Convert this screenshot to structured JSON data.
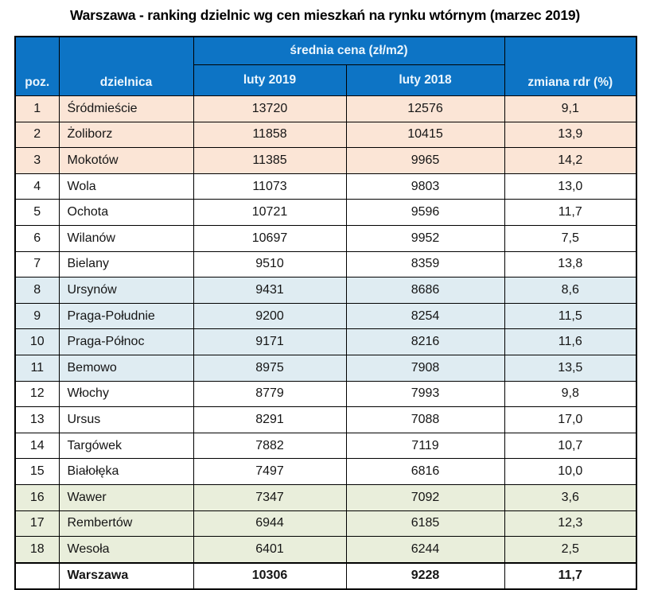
{
  "title": "Warszawa - ranking dzielnic wg cen mieszkań na rynku wtórnym (marzec 2019)",
  "colors": {
    "header_bg": "#0d74c5",
    "header_text": "#ecf6fd",
    "border": "#000000",
    "text": "#151515",
    "row_tints": {
      "peach": "#fbe5d6",
      "white": "#ffffff",
      "blue": "#dfecf2",
      "green": "#e9eedb"
    }
  },
  "table": {
    "headers": {
      "poz": "poz.",
      "district": "dzielnica",
      "price_group": "średnia cena (zł/m2)",
      "feb2019": "luty 2019",
      "feb2018": "luty 2018",
      "change": "zmiana rdr (%)"
    },
    "rows": [
      {
        "poz": "1",
        "district": "Śródmieście",
        "price2019": "13720",
        "price2018": "12576",
        "change": "9,1",
        "tint": "peach"
      },
      {
        "poz": "2",
        "district": "Żoliborz",
        "price2019": "11858",
        "price2018": "10415",
        "change": "13,9",
        "tint": "peach"
      },
      {
        "poz": "3",
        "district": "Mokotów",
        "price2019": "11385",
        "price2018": "9965",
        "change": "14,2",
        "tint": "peach"
      },
      {
        "poz": "4",
        "district": "Wola",
        "price2019": "11073",
        "price2018": "9803",
        "change": "13,0",
        "tint": "white"
      },
      {
        "poz": "5",
        "district": "Ochota",
        "price2019": "10721",
        "price2018": "9596",
        "change": "11,7",
        "tint": "white"
      },
      {
        "poz": "6",
        "district": "Wilanów",
        "price2019": "10697",
        "price2018": "9952",
        "change": "7,5",
        "tint": "white"
      },
      {
        "poz": "7",
        "district": "Bielany",
        "price2019": "9510",
        "price2018": "8359",
        "change": "13,8",
        "tint": "white"
      },
      {
        "poz": "8",
        "district": "Ursynów",
        "price2019": "9431",
        "price2018": "8686",
        "change": "8,6",
        "tint": "blue"
      },
      {
        "poz": "9",
        "district": "Praga-Południe",
        "price2019": "9200",
        "price2018": "8254",
        "change": "11,5",
        "tint": "blue"
      },
      {
        "poz": "10",
        "district": "Praga-Północ",
        "price2019": "9171",
        "price2018": "8216",
        "change": "11,6",
        "tint": "blue"
      },
      {
        "poz": "11",
        "district": "Bemowo",
        "price2019": "8975",
        "price2018": "7908",
        "change": "13,5",
        "tint": "blue"
      },
      {
        "poz": "12",
        "district": "Włochy",
        "price2019": "8779",
        "price2018": "7993",
        "change": "9,8",
        "tint": "white"
      },
      {
        "poz": "13",
        "district": "Ursus",
        "price2019": "8291",
        "price2018": "7088",
        "change": "17,0",
        "tint": "white"
      },
      {
        "poz": "14",
        "district": "Targówek",
        "price2019": "7882",
        "price2018": "7119",
        "change": "10,7",
        "tint": "white"
      },
      {
        "poz": "15",
        "district": "Białołęka",
        "price2019": "7497",
        "price2018": "6816",
        "change": "10,0",
        "tint": "white"
      },
      {
        "poz": "16",
        "district": "Wawer",
        "price2019": "7347",
        "price2018": "7092",
        "change": "3,6",
        "tint": "green"
      },
      {
        "poz": "17",
        "district": "Rembertów",
        "price2019": "6944",
        "price2018": "6185",
        "change": "12,3",
        "tint": "green"
      },
      {
        "poz": "18",
        "district": "Wesoła",
        "price2019": "6401",
        "price2018": "6244",
        "change": "2,5",
        "tint": "green"
      },
      {
        "poz": "",
        "district": "Warszawa",
        "price2019": "10306",
        "price2018": "9228",
        "change": "11,7",
        "tint": "white",
        "bold": true
      }
    ]
  },
  "chart_data": {
    "type": "table",
    "title": "Warszawa - ranking dzielnic wg cen mieszkań na rynku wtórnym (marzec 2019)",
    "columns": [
      "poz.",
      "dzielnica",
      "średnia cena (zł/m2) luty 2019",
      "średnia cena (zł/m2) luty 2018",
      "zmiana rdr (%)"
    ],
    "rows": [
      [
        1,
        "Śródmieście",
        13720,
        12576,
        9.1
      ],
      [
        2,
        "Żoliborz",
        11858,
        10415,
        13.9
      ],
      [
        3,
        "Mokotów",
        11385,
        9965,
        14.2
      ],
      [
        4,
        "Wola",
        11073,
        9803,
        13.0
      ],
      [
        5,
        "Ochota",
        10721,
        9596,
        11.7
      ],
      [
        6,
        "Wilanów",
        10697,
        9952,
        7.5
      ],
      [
        7,
        "Bielany",
        9510,
        8359,
        13.8
      ],
      [
        8,
        "Ursynów",
        9431,
        8686,
        8.6
      ],
      [
        9,
        "Praga-Południe",
        9200,
        8254,
        11.5
      ],
      [
        10,
        "Praga-Północ",
        9171,
        8216,
        11.6
      ],
      [
        11,
        "Bemowo",
        8975,
        7908,
        13.5
      ],
      [
        12,
        "Włochy",
        8779,
        7993,
        9.8
      ],
      [
        13,
        "Ursus",
        8291,
        7088,
        17.0
      ],
      [
        14,
        "Targówek",
        7882,
        7119,
        10.7
      ],
      [
        15,
        "Białołęka",
        7497,
        6816,
        10.0
      ],
      [
        16,
        "Wawer",
        7347,
        7092,
        3.6
      ],
      [
        17,
        "Rembertów",
        6944,
        6185,
        12.3
      ],
      [
        18,
        "Wesoła",
        6401,
        6244,
        2.5
      ],
      [
        null,
        "Warszawa",
        10306,
        9228,
        11.7
      ]
    ]
  }
}
